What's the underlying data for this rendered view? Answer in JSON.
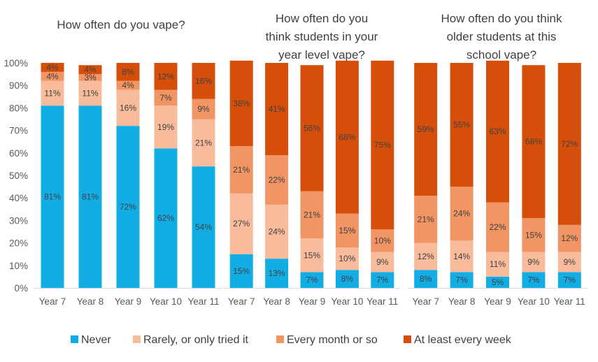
{
  "colors": {
    "Never": "#13ADE6",
    "Rarely, or only tried it": "#F8BC9C",
    "Every month or so": "#F09563",
    "At least every week": "#D54F0A",
    "axis": "#D9D9D9",
    "text": "#404040"
  },
  "chart_data": [
    {
      "type": "bar",
      "stacked": true,
      "title": "How often do you vape?",
      "categories": [
        "Year 7",
        "Year 8",
        "Year 9",
        "Year 10",
        "Year 11"
      ],
      "ylim": [
        0,
        100
      ],
      "yticks": [
        "0%",
        "10%",
        "20%",
        "30%",
        "40%",
        "50%",
        "60%",
        "70%",
        "80%",
        "90%",
        "100%"
      ],
      "series": [
        {
          "name": "Never",
          "values": [
            81,
            81,
            72,
            62,
            54
          ],
          "labels": [
            "81%",
            "81%",
            "72%",
            "62%",
            "54%"
          ]
        },
        {
          "name": "Rarely, or only tried it",
          "values": [
            11,
            11,
            16,
            19,
            21
          ],
          "labels": [
            "11%",
            "11%",
            "16%",
            "19%",
            "21%"
          ]
        },
        {
          "name": "Every month or so",
          "values": [
            4,
            3,
            4,
            7,
            9
          ],
          "labels": [
            "4%",
            "3%",
            "4%",
            "7%",
            "9%"
          ]
        },
        {
          "name": "At least every week",
          "values": [
            4,
            4,
            8,
            12,
            16
          ],
          "labels": [
            "4%",
            "4%",
            "8%",
            "12%",
            "16%"
          ]
        }
      ]
    },
    {
      "type": "bar",
      "stacked": true,
      "title": "How often do you think students in your year level vape?",
      "categories": [
        "Year 7",
        "Year 8",
        "Year 9",
        "Year 10",
        "Year 11"
      ],
      "ylim": [
        0,
        100
      ],
      "series": [
        {
          "name": "Never",
          "values": [
            15,
            13,
            7,
            8,
            7
          ],
          "labels": [
            "15%",
            "13%",
            "7%",
            "8%",
            "7%"
          ]
        },
        {
          "name": "Rarely, or only tried it",
          "values": [
            27,
            24,
            15,
            10,
            9
          ],
          "labels": [
            "27%",
            "24%",
            "15%",
            "10%",
            "9%"
          ]
        },
        {
          "name": "Every month or so",
          "values": [
            21,
            22,
            21,
            15,
            10
          ],
          "labels": [
            "21%",
            "22%",
            "21%",
            "15%",
            "10%"
          ]
        },
        {
          "name": "At least every week",
          "values": [
            38,
            41,
            56,
            68,
            75
          ],
          "labels": [
            "38%",
            "41%",
            "56%",
            "68%",
            "75%"
          ]
        }
      ]
    },
    {
      "type": "bar",
      "stacked": true,
      "title": "How often do you think older students at this school vape?",
      "categories": [
        "Year 7",
        "Year 8",
        "Year 9",
        "Year 10",
        "Year 11"
      ],
      "ylim": [
        0,
        100
      ],
      "series": [
        {
          "name": "Never",
          "values": [
            8,
            7,
            5,
            7,
            7
          ],
          "labels": [
            "8%",
            "7%",
            "5%",
            "7%",
            "7%"
          ]
        },
        {
          "name": "Rarely, or only tried it",
          "values": [
            12,
            14,
            11,
            9,
            9
          ],
          "labels": [
            "12%",
            "14%",
            "11%",
            "9%",
            "9%"
          ]
        },
        {
          "name": "Every month or so",
          "values": [
            21,
            24,
            22,
            15,
            12
          ],
          "labels": [
            "21%",
            "24%",
            "22%",
            "15%",
            "12%"
          ]
        },
        {
          "name": "At least every week",
          "values": [
            59,
            55,
            63,
            68,
            72
          ],
          "labels": [
            "59%",
            "55%",
            "63%",
            "68%",
            "72%"
          ]
        }
      ]
    }
  ],
  "legend": {
    "position": "bottom",
    "items": [
      "Never",
      "Rarely, or only tried it",
      "Every month or so",
      "At least every week"
    ]
  }
}
